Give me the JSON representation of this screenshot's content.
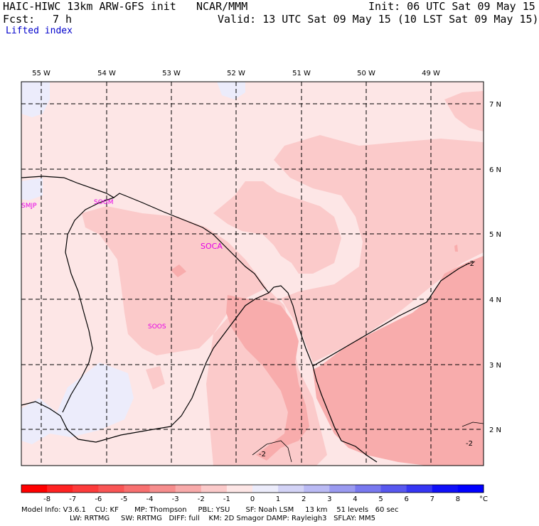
{
  "header": {
    "model": "HAIC-HIWC 13km ARW-GFS init",
    "center": "NCAR/MMM",
    "init": "Init: 06 UTC Sat 09 May 15",
    "fcst_label": "Fcst:",
    "fcst_value": "7 h",
    "valid": "Valid: 13 UTC Sat 09 May 15 (10 LST Sat 09 May 15)",
    "field": "Lifted index"
  },
  "map": {
    "lon_labels": [
      "55 W",
      "54 W",
      "53 W",
      "52 W",
      "51 W",
      "50 W",
      "49 W"
    ],
    "lat_labels": [
      "7 N",
      "6 N",
      "5 N",
      "4 N",
      "3 N",
      "2 N"
    ],
    "stations": [
      "SMJP",
      "SOGM",
      "SOCA",
      "SOOS"
    ],
    "contour_labels": [
      "-2",
      "-2",
      "-2"
    ],
    "colors": {
      "neg1": "#fde6e6",
      "neg2": "#fbcaca",
      "neg3": "#f8acac",
      "pos1": "#ececfb",
      "station": "#e600e6"
    }
  },
  "colorbar": {
    "ticks": [
      "-8",
      "-7",
      "-6",
      "-5",
      "-4",
      "-3",
      "-2",
      "-1",
      "0",
      "1",
      "2",
      "3",
      "4",
      "5",
      "6",
      "7",
      "8"
    ],
    "unit": "°C",
    "colors": [
      "#ff0000",
      "#ff2222",
      "#fd3b3b",
      "#f95555",
      "#f87070",
      "#f68d8d",
      "#f8aaaa",
      "#fbcaca",
      "#fde6e6",
      "#ececfb",
      "#d3d3f6",
      "#babaf4",
      "#9a9af0",
      "#7878ef",
      "#5858ef",
      "#3636f3",
      "#1010f9",
      "#0000ff"
    ]
  },
  "footer": {
    "line1": "Model Info: V3.6.1    CU: KF       MP: Thompson     PBL: YSU       SF: Noah LSM     13 km    51 levels   60 sec",
    "line2": "LW: RRTMG     SW: RRTMG   DIFF: full    KM: 2D Smagor DAMP: Rayleigh3   SFLAY: MM5"
  }
}
